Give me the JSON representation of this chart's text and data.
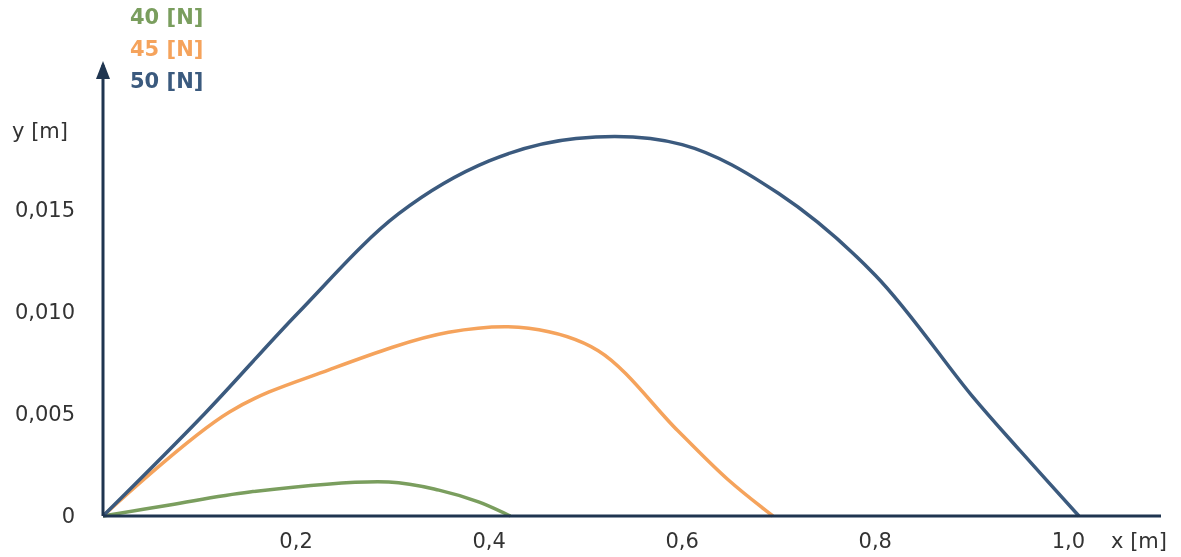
{
  "chart_data": {
    "type": "line",
    "xlabel": "x [m]",
    "ylabel": "y [m]",
    "xlim": [
      0,
      1.096
    ],
    "ylim": [
      0,
      0.0221
    ],
    "xticks": [
      {
        "value": 0.2,
        "label": "0,2"
      },
      {
        "value": 0.4,
        "label": "0,4"
      },
      {
        "value": 0.6,
        "label": "0,6"
      },
      {
        "value": 0.8,
        "label": "0,8"
      },
      {
        "value": 1.0,
        "label": "1,0"
      }
    ],
    "yticks": [
      0,
      {
        "value": 0.005,
        "label": "0,005"
      },
      {
        "value": 0.01,
        "label": "0,010"
      },
      {
        "value": 0.015,
        "label": "0,015"
      }
    ],
    "legend": "top left",
    "grid": false,
    "marker": "none",
    "line_style": "solid",
    "series": [
      {
        "name": "40 [N]",
        "color": "#7a9e5e",
        "x": [
          0,
          0.069,
          0.152,
          0.296,
          0.348,
          0.389,
          0.422
        ],
        "values": [
          0,
          0.00054,
          0.00118,
          0.00167,
          0.00127,
          0.00069,
          0
        ]
      },
      {
        "name": "45 [N]",
        "color": "#f5a35c",
        "x": [
          0,
          0.131,
          0.234,
          0.358,
          0.441,
          0.513,
          0.595,
          0.647,
          0.694
        ],
        "values": [
          0,
          0.0051,
          0.00716,
          0.009,
          0.0092,
          0.0081,
          0.0042,
          0.0018,
          0
        ]
      },
      {
        "name": "50 [N]",
        "color": "#3b5a7e",
        "x": [
          0,
          0.105,
          0.203,
          0.306,
          0.4,
          0.49,
          0.6,
          0.7,
          0.8,
          0.9,
          0.95,
          1.011
        ],
        "values": [
          0,
          0.005,
          0.01,
          0.0148,
          0.0174,
          0.0185,
          0.0182,
          0.0158,
          0.0118,
          0.0059,
          0.0032,
          0
        ]
      }
    ]
  }
}
